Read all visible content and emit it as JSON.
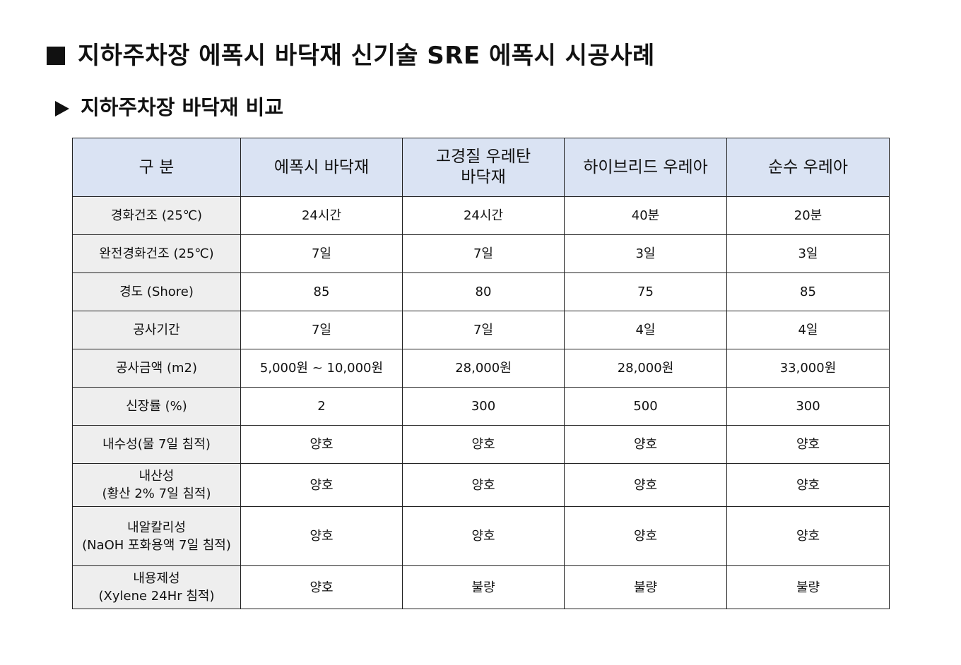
{
  "title": "지하주차장 에폭시 바닥재 신기술 SRE 에폭시 시공사례",
  "subtitle": "지하주차장 바닥재 비교",
  "table": {
    "headers": [
      [
        "구 분"
      ],
      [
        "에폭시 바닥재"
      ],
      [
        "고경질 우레탄",
        "바닥재"
      ],
      [
        "하이브리드 우레아"
      ],
      [
        "순수 우레아"
      ]
    ],
    "rows": [
      {
        "label": [
          "경화건조 (25℃)"
        ],
        "values": [
          "24시간",
          "24시간",
          "40분",
          "20분"
        ]
      },
      {
        "label": [
          "완전경화건조 (25℃)"
        ],
        "values": [
          "7일",
          "7일",
          "3일",
          "3일"
        ]
      },
      {
        "label": [
          "경도 (Shore)"
        ],
        "values": [
          "85",
          "80",
          "75",
          "85"
        ]
      },
      {
        "label": [
          "공사기간"
        ],
        "values": [
          "7일",
          "7일",
          "4일",
          "4일"
        ]
      },
      {
        "label": [
          "공사금액 (m2)"
        ],
        "values": [
          "5,000원 ~ 10,000원",
          "28,000원",
          "28,000원",
          "33,000원"
        ]
      },
      {
        "label": [
          "신장률 (%)"
        ],
        "values": [
          "2",
          "300",
          "500",
          "300"
        ]
      },
      {
        "label": [
          "내수성(물 7일 침적)"
        ],
        "values": [
          "양호",
          "양호",
          "양호",
          "양호"
        ]
      },
      {
        "label": [
          "내산성",
          "(황산 2% 7일 침적)"
        ],
        "values": [
          "양호",
          "양호",
          "양호",
          "양호"
        ]
      },
      {
        "label": [
          "내알칼리성",
          "(NaOH 포화용액 7일 침적)"
        ],
        "values": [
          "양호",
          "양호",
          "양호",
          "양호"
        ]
      },
      {
        "label": [
          "내용제성",
          "(Xylene 24Hr 침적)"
        ],
        "values": [
          "양호",
          "불량",
          "불량",
          "불량"
        ]
      }
    ]
  },
  "colors": {
    "header_background": "#dae3f3",
    "label_column_background": "#eeeeee",
    "border": "#222222"
  },
  "icons": {
    "title_bullet": "black-square-icon",
    "subtitle_bullet": "black-triangle-right-icon"
  }
}
